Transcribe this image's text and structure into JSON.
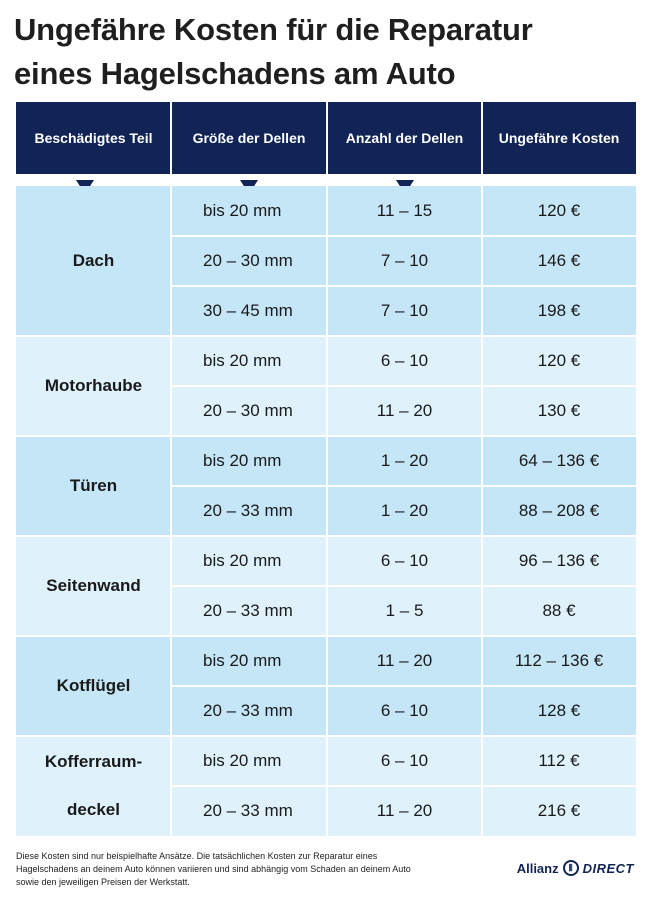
{
  "title_line1": "Ungefähre Kosten für die Reparatur",
  "title_line2": "eines Hagelschadens am Auto",
  "headers": [
    "Beschädigtes Teil",
    "Größe der Dellen",
    "Anzahl der Dellen",
    "Ungefähre Kosten"
  ],
  "groups": [
    {
      "part": "Dach",
      "rows": [
        {
          "size": "bis 20 mm",
          "count": "11 – 15",
          "cost": "120 €"
        },
        {
          "size": "20 – 30 mm",
          "count": "7 – 10",
          "cost": "146 €"
        },
        {
          "size": "30 – 45 mm",
          "count": "7 – 10",
          "cost": "198 €"
        }
      ]
    },
    {
      "part": "Motorhaube",
      "rows": [
        {
          "size": "bis 20 mm",
          "count": "6 – 10",
          "cost": "120 €"
        },
        {
          "size": "20 – 30 mm",
          "count": "11 – 20",
          "cost": "130 €"
        }
      ]
    },
    {
      "part": "Türen",
      "rows": [
        {
          "size": "bis 20 mm",
          "count": "1 – 20",
          "cost": "64 – 136 €"
        },
        {
          "size": "20 – 33 mm",
          "count": "1 – 20",
          "cost": "88 – 208 €"
        }
      ]
    },
    {
      "part": "Seitenwand",
      "rows": [
        {
          "size": "bis 20 mm",
          "count": "6 – 10",
          "cost": "96 – 136 €"
        },
        {
          "size": "20 – 33 mm",
          "count": "1 – 5",
          "cost": "88 €"
        }
      ]
    },
    {
      "part": "Kotflügel",
      "rows": [
        {
          "size": "bis 20 mm",
          "count": "11 – 20",
          "cost": "112 – 136 €"
        },
        {
          "size": "20 – 33 mm",
          "count": "6 – 10",
          "cost": "128 €"
        }
      ]
    },
    {
      "part": "Kofferraum-\ndeckel",
      "rows": [
        {
          "size": "bis 20 mm",
          "count": "6 – 10",
          "cost": "112 €"
        },
        {
          "size": "20 – 33 mm",
          "count": "11 – 20",
          "cost": "216 €"
        }
      ]
    }
  ],
  "footnote": "Diese Kosten sind nur beispielhafte Ansätze. Die tatsächlichen Kosten zur Reparatur eines Hagelschadens an deinem Auto können variieren und sind abhängig vom Schaden an deinem Auto sowie den jeweiligen Preisen der Werkstatt.",
  "logo": {
    "brand": "Allianz",
    "product": "DIRECT"
  },
  "colors": {
    "header": "#112455",
    "dark_band": "#c4e6f7",
    "light_band": "#dff2fb"
  }
}
